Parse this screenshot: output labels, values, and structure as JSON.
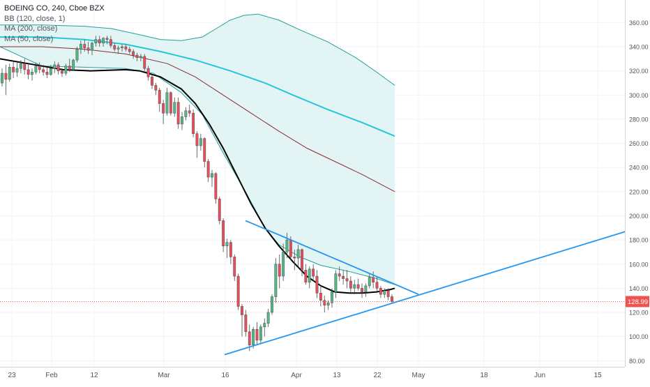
{
  "legend": {
    "symbol_line": "BOEING CO, 240, Cboe BZX",
    "bb_line": "BB (120, close, 1)",
    "ma200_line": "MA (200, close)",
    "ma50_line": "MA (50, close)"
  },
  "chart_data": {
    "type": "candlestick",
    "title": "BOEING CO, 240, Cboe BZX",
    "ylim": [
      75,
      372
    ],
    "y_ticks": [
      80,
      100,
      120,
      140,
      160,
      180,
      200,
      220,
      240,
      260,
      280,
      300,
      320,
      340,
      360
    ],
    "x_tick_labels": [
      "23",
      "Feb",
      "12",
      "Mar",
      "16",
      "Apr",
      "13",
      "22",
      "May",
      "18",
      "Jun",
      "15"
    ],
    "last_price_label": "128.99",
    "last_price": 128.99,
    "colors": {
      "up": "#53b987",
      "down": "#eb4d5c",
      "ma50": "#000000",
      "ma200": "#8b2b32",
      "bb_basis": "#26c6da",
      "bb_band": "#22a09a",
      "bb_fill": "#e3f4f4",
      "trendline": "#2196f3",
      "price_line": "#ef5350"
    },
    "candles": [
      [
        310,
        322,
        307,
        318
      ],
      [
        318,
        325,
        300,
        313
      ],
      [
        313,
        326,
        311,
        323
      ],
      [
        323,
        328,
        314,
        319
      ],
      [
        319,
        327,
        315,
        322
      ],
      [
        322,
        329,
        318,
        326
      ],
      [
        326,
        330,
        317,
        321
      ],
      [
        321,
        326,
        313,
        317
      ],
      [
        317,
        322,
        312,
        319
      ],
      [
        319,
        327,
        317,
        324
      ],
      [
        324,
        327,
        318,
        321
      ],
      [
        321,
        325,
        316,
        319
      ],
      [
        319,
        323,
        314,
        317
      ],
      [
        317,
        325,
        316,
        322
      ],
      [
        322,
        328,
        318,
        325
      ],
      [
        325,
        327,
        317,
        320
      ],
      [
        320,
        322,
        315,
        318
      ],
      [
        318,
        326,
        316,
        324
      ],
      [
        324,
        330,
        319,
        321
      ],
      [
        321,
        330,
        320,
        329
      ],
      [
        329,
        340,
        327,
        338
      ],
      [
        338,
        345,
        334,
        342
      ],
      [
        342,
        346,
        336,
        339
      ],
      [
        339,
        344,
        334,
        337
      ],
      [
        337,
        344,
        333,
        343
      ],
      [
        343,
        349,
        340,
        346
      ],
      [
        346,
        349,
        340,
        343
      ],
      [
        343,
        348,
        340,
        347
      ],
      [
        347,
        349,
        342,
        346
      ],
      [
        346,
        349,
        339,
        341
      ],
      [
        341,
        343,
        336,
        338
      ],
      [
        338,
        341,
        334,
        339
      ],
      [
        339,
        342,
        336,
        340
      ],
      [
        340,
        342,
        336,
        338
      ],
      [
        338,
        340,
        334,
        336
      ],
      [
        336,
        338,
        330,
        333
      ],
      [
        333,
        335,
        328,
        331
      ],
      [
        331,
        334,
        328,
        332
      ],
      [
        332,
        334,
        320,
        322
      ],
      [
        322,
        324,
        312,
        315
      ],
      [
        315,
        317,
        305,
        308
      ],
      [
        308,
        310,
        300,
        304
      ],
      [
        304,
        306,
        286,
        293
      ],
      [
        293,
        296,
        276,
        285
      ],
      [
        285,
        306,
        283,
        302
      ],
      [
        302,
        303,
        283,
        285
      ],
      [
        285,
        298,
        282,
        294
      ],
      [
        294,
        298,
        272,
        276
      ],
      [
        276,
        286,
        271,
        282
      ],
      [
        282,
        290,
        279,
        287
      ],
      [
        287,
        292,
        282,
        285
      ],
      [
        285,
        288,
        265,
        268
      ],
      [
        268,
        270,
        248,
        258
      ],
      [
        258,
        268,
        254,
        264
      ],
      [
        264,
        265,
        240,
        245
      ],
      [
        245,
        247,
        228,
        232
      ],
      [
        232,
        238,
        224,
        235
      ],
      [
        235,
        236,
        210,
        214
      ],
      [
        214,
        216,
        193,
        196
      ],
      [
        196,
        198,
        170,
        175
      ],
      [
        175,
        181,
        165,
        178
      ],
      [
        178,
        180,
        160,
        166
      ],
      [
        166,
        168,
        146,
        150
      ],
      [
        150,
        152,
        122,
        125
      ],
      [
        125,
        127,
        100,
        118
      ],
      [
        118,
        122,
        100,
        104
      ],
      [
        104,
        110,
        88,
        93
      ],
      [
        93,
        108,
        90,
        106
      ],
      [
        106,
        112,
        93,
        97
      ],
      [
        97,
        110,
        94,
        108
      ],
      [
        108,
        115,
        100,
        111
      ],
      [
        111,
        123,
        108,
        120
      ],
      [
        120,
        135,
        118,
        133
      ],
      [
        133,
        165,
        128,
        160
      ],
      [
        160,
        168,
        140,
        150
      ],
      [
        150,
        177,
        146,
        170
      ],
      [
        170,
        186,
        165,
        180
      ],
      [
        180,
        183,
        163,
        166
      ],
      [
        166,
        172,
        155,
        165
      ],
      [
        165,
        176,
        158,
        172
      ],
      [
        172,
        173,
        150,
        155
      ],
      [
        155,
        160,
        143,
        145
      ],
      [
        145,
        158,
        140,
        156
      ],
      [
        156,
        160,
        146,
        150
      ],
      [
        150,
        155,
        132,
        136
      ],
      [
        136,
        142,
        125,
        130
      ],
      [
        130,
        134,
        120,
        126
      ],
      [
        126,
        130,
        122,
        128
      ],
      [
        128,
        140,
        124,
        137
      ],
      [
        137,
        155,
        132,
        152
      ],
      [
        152,
        158,
        146,
        150
      ],
      [
        150,
        155,
        143,
        148
      ],
      [
        148,
        155,
        140,
        146
      ],
      [
        146,
        150,
        137,
        140
      ],
      [
        140,
        147,
        135,
        143
      ],
      [
        143,
        148,
        138,
        140
      ],
      [
        140,
        144,
        132,
        137
      ],
      [
        137,
        144,
        133,
        142
      ],
      [
        142,
        152,
        140,
        149
      ],
      [
        149,
        154,
        140,
        145
      ],
      [
        145,
        150,
        138,
        140
      ],
      [
        140,
        142,
        132,
        135
      ],
      [
        135,
        140,
        132,
        138
      ],
      [
        138,
        140,
        130,
        133
      ],
      [
        133,
        135,
        127,
        129
      ]
    ],
    "ma50": [
      [
        0,
        330
      ],
      [
        40,
        326
      ],
      [
        90,
        321
      ],
      [
        130,
        320
      ],
      [
        180,
        321
      ],
      [
        200,
        320
      ],
      [
        230,
        315
      ],
      [
        260,
        305
      ],
      [
        280,
        293
      ],
      [
        300,
        276
      ],
      [
        320,
        256
      ],
      [
        340,
        233
      ],
      [
        360,
        210
      ],
      [
        380,
        190
      ],
      [
        400,
        175
      ],
      [
        420,
        162
      ],
      [
        440,
        150
      ],
      [
        460,
        142
      ],
      [
        480,
        137
      ],
      [
        500,
        136
      ],
      [
        520,
        136
      ],
      [
        540,
        137
      ],
      [
        560,
        139
      ],
      [
        566,
        140
      ]
    ],
    "ma200": [
      [
        0,
        340
      ],
      [
        60,
        340
      ],
      [
        120,
        338
      ],
      [
        180,
        334
      ],
      [
        240,
        326
      ],
      [
        280,
        315
      ],
      [
        320,
        300
      ],
      [
        360,
        285
      ],
      [
        400,
        270
      ],
      [
        440,
        256
      ],
      [
        480,
        245
      ],
      [
        520,
        234
      ],
      [
        566,
        220
      ]
    ],
    "bb_basis": [
      [
        0,
        348
      ],
      [
        60,
        348
      ],
      [
        120,
        346
      ],
      [
        180,
        342
      ],
      [
        230,
        336
      ],
      [
        280,
        329
      ],
      [
        330,
        320
      ],
      [
        380,
        310
      ],
      [
        420,
        300
      ],
      [
        470,
        288
      ],
      [
        520,
        277
      ],
      [
        566,
        266
      ]
    ],
    "bb_upper": [
      [
        0,
        358
      ],
      [
        60,
        358
      ],
      [
        120,
        357
      ],
      [
        160,
        355
      ],
      [
        200,
        350
      ],
      [
        230,
        346
      ],
      [
        260,
        345
      ],
      [
        290,
        348
      ],
      [
        310,
        355
      ],
      [
        330,
        362
      ],
      [
        350,
        366
      ],
      [
        370,
        367
      ],
      [
        400,
        362
      ],
      [
        430,
        354
      ],
      [
        470,
        344
      ],
      [
        510,
        331
      ],
      [
        540,
        319
      ],
      [
        566,
        308
      ]
    ],
    "bb_lower": [
      [
        0,
        340
      ],
      [
        60,
        324
      ],
      [
        120,
        323
      ],
      [
        180,
        322
      ],
      [
        220,
        318
      ],
      [
        260,
        302
      ],
      [
        290,
        284
      ],
      [
        320,
        252
      ],
      [
        350,
        222
      ],
      [
        380,
        190
      ],
      [
        400,
        176
      ],
      [
        430,
        166
      ],
      [
        460,
        159
      ],
      [
        500,
        154
      ],
      [
        540,
        148
      ],
      [
        566,
        143
      ]
    ],
    "trendlines": [
      [
        [
          352,
          196
        ],
        [
          600,
          135
        ]
      ],
      [
        [
          322,
          85
        ],
        [
          897,
          187
        ]
      ]
    ]
  }
}
